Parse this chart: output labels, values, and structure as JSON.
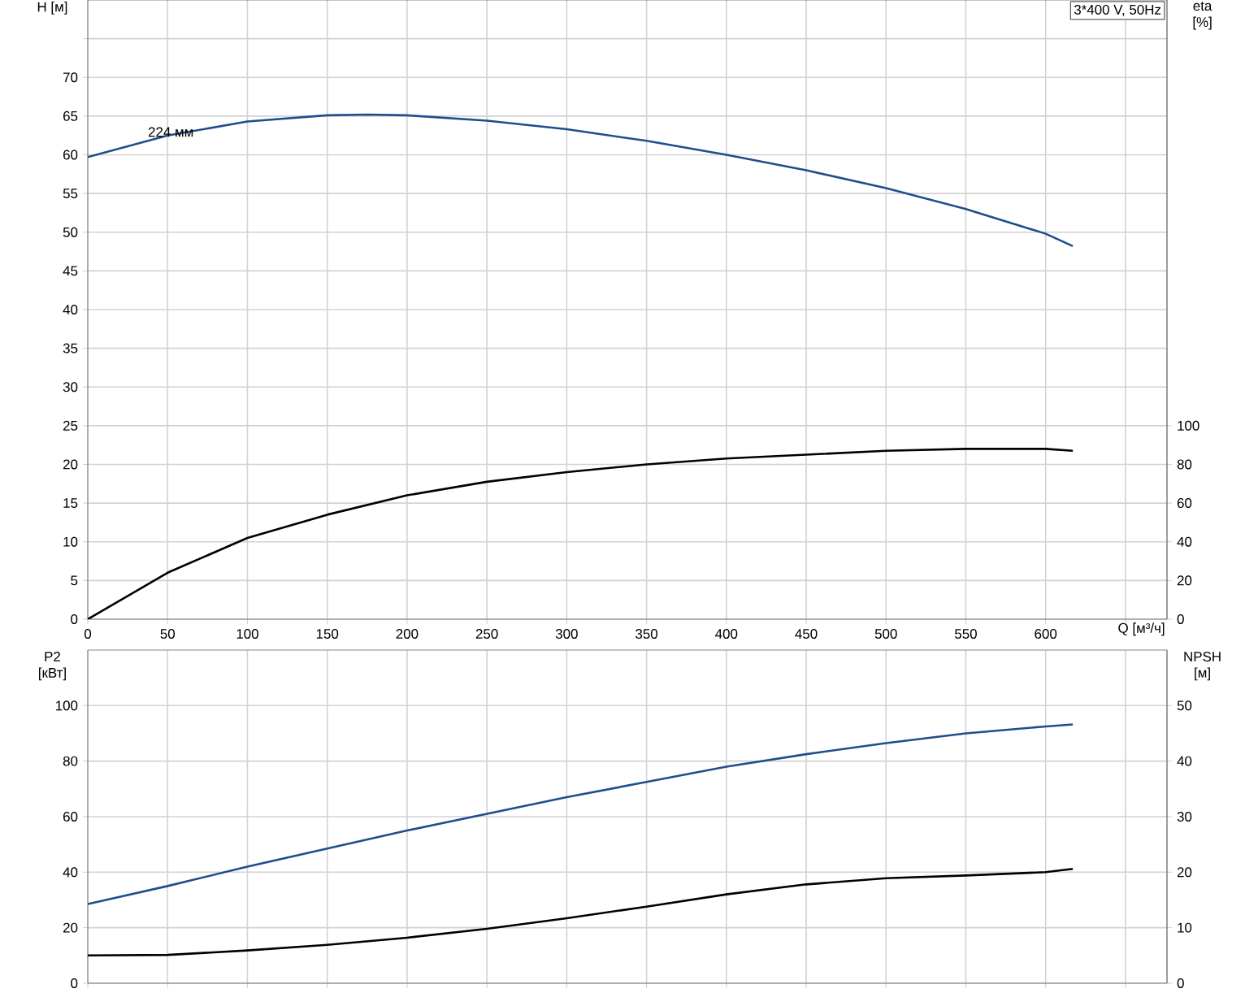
{
  "chart_data": [
    {
      "type": "line",
      "title": "3*400 V, 50Hz",
      "xlabel": "Q [м³/ч]",
      "ylabel": "H [м]",
      "y2label": "eta [%]",
      "xlim": [
        0,
        676
      ],
      "xticks": [
        0,
        50,
        100,
        150,
        200,
        250,
        300,
        350,
        400,
        450,
        500,
        550,
        600,
        {
          "value": 650,
          "label": null
        }
      ],
      "ylim": [
        0,
        80
      ],
      "yticks": [
        0,
        5,
        10,
        15,
        20,
        25,
        30,
        35,
        40,
        45,
        50,
        55,
        60,
        65,
        70,
        {
          "value": 75,
          "label": null
        }
      ],
      "y2lim": [
        0,
        320
      ],
      "y2ticks": [
        0,
        20,
        40,
        60,
        80,
        100
      ],
      "grid": true,
      "annotations": [
        {
          "text": "224 мм",
          "x": 52,
          "y": 62.5
        }
      ],
      "series": [
        {
          "color": "#1f4e8c",
          "x": [
            0,
            50,
            100,
            150,
            175,
            200,
            250,
            300,
            350,
            400,
            450,
            500,
            550,
            600,
            617
          ],
          "values": [
            59.7,
            62.5,
            64.3,
            65.1,
            65.2,
            65.1,
            64.4,
            63.3,
            61.8,
            60,
            58,
            55.7,
            53,
            49.8,
            48.2
          ]
        },
        {
          "color": "#000000",
          "axis": "y2",
          "x": [
            0,
            50,
            100,
            150,
            200,
            250,
            300,
            350,
            400,
            450,
            500,
            550,
            600,
            617
          ],
          "values": [
            0,
            24,
            42,
            54,
            64,
            71,
            76,
            80,
            83,
            85,
            87,
            88,
            88,
            87
          ]
        }
      ]
    },
    {
      "type": "line",
      "ylabel": "P2 [кВт]",
      "y2label": "NPSH [м]",
      "tick_labels": "y",
      "xlim": [
        0,
        676
      ],
      "xticks": [
        0,
        50,
        100,
        150,
        200,
        250,
        300,
        350,
        400,
        450,
        500,
        550,
        600,
        650
      ],
      "ylim": [
        0,
        120
      ],
      "yticks": [
        0,
        20,
        40,
        60,
        80,
        100
      ],
      "y2lim": [
        0,
        60
      ],
      "y2ticks": [
        0,
        10,
        20,
        30,
        40,
        50
      ],
      "grid": true,
      "series": [
        {
          "color": "#1f4e8c",
          "x": [
            0,
            50,
            100,
            150,
            200,
            250,
            300,
            350,
            400,
            450,
            500,
            550,
            600,
            617
          ],
          "values": [
            28.5,
            35,
            42,
            48.5,
            55,
            61,
            67,
            72.5,
            78,
            82.5,
            86.5,
            90,
            92.5,
            93.2
          ]
        },
        {
          "color": "#000000",
          "axis": "y2",
          "x": [
            0,
            50,
            100,
            150,
            200,
            250,
            300,
            350,
            400,
            450,
            500,
            550,
            600,
            617
          ],
          "values": [
            5,
            5.1,
            5.9,
            6.9,
            8.2,
            9.8,
            11.7,
            13.8,
            16,
            17.8,
            18.9,
            19.4,
            20,
            20.6
          ]
        }
      ]
    }
  ]
}
